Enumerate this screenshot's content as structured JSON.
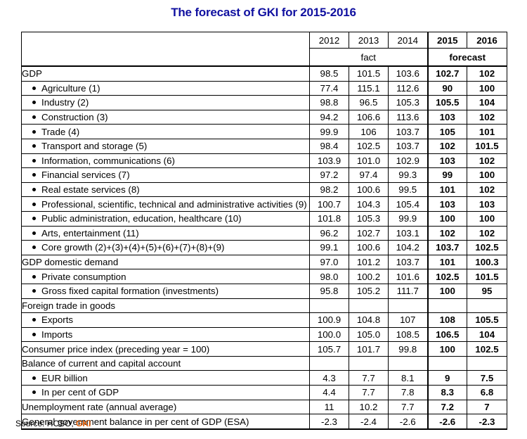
{
  "title": "The forecast of GKI for 2015-2016",
  "header": {
    "years": [
      "2012",
      "2013",
      "2014",
      "2015",
      "2016"
    ],
    "fact_label": "fact",
    "forecast_label": "forecast"
  },
  "rows": [
    {
      "label": "GDP",
      "bullet": false,
      "values": [
        "98.5",
        "101.5",
        "103.6",
        "102.7",
        "102"
      ]
    },
    {
      "label": "Agriculture (1)",
      "bullet": true,
      "values": [
        "77.4",
        "115.1",
        "112.6",
        "90",
        "100"
      ]
    },
    {
      "label": "Industry (2)",
      "bullet": true,
      "values": [
        "98.8",
        "96.5",
        "105.3",
        "105.5",
        "104"
      ]
    },
    {
      "label": "Construction (3)",
      "bullet": true,
      "values": [
        "94.2",
        "106.6",
        "113.6",
        "103",
        "102"
      ]
    },
    {
      "label": "Trade (4)",
      "bullet": true,
      "values": [
        "99.9",
        "106",
        "103.7",
        "105",
        "101"
      ]
    },
    {
      "label": "Transport and storage (5)",
      "bullet": true,
      "values": [
        "98.4",
        "102.5",
        "103.7",
        "102",
        "101.5"
      ]
    },
    {
      "label": "Information, communications (6)",
      "bullet": true,
      "values": [
        "103.9",
        "101.0",
        "102.9",
        "103",
        "102"
      ]
    },
    {
      "label": "Financial services (7)",
      "bullet": true,
      "values": [
        "97.2",
        "97.4",
        "99.3",
        "99",
        "100"
      ]
    },
    {
      "label": "Real estate services (8)",
      "bullet": true,
      "values": [
        "98.2",
        "100.6",
        "99.5",
        "101",
        "102"
      ]
    },
    {
      "label": "Professional, scientific, technical and administrative activities (9)",
      "bullet": true,
      "values": [
        "100.7",
        "104.3",
        "105.4",
        "103",
        "103"
      ]
    },
    {
      "label": "Public administration, education, healthcare (10)",
      "bullet": true,
      "values": [
        "101.8",
        "105.3",
        "99.9",
        "100",
        "100"
      ]
    },
    {
      "label": "Arts, entertainment (11)",
      "bullet": true,
      "values": [
        "96.2",
        "102.7",
        "103.1",
        "102",
        "102"
      ]
    },
    {
      "label": "Core growth (2)+(3)+(4)+(5)+(6)+(7)+(8)+(9)",
      "bullet": true,
      "values": [
        "99.1",
        "100.6",
        "104.2",
        "103.7",
        "102.5"
      ]
    },
    {
      "label": "GDP domestic demand",
      "bullet": false,
      "values": [
        "97.0",
        "101.2",
        "103.7",
        "101",
        "100.3"
      ]
    },
    {
      "label": "Private consumption",
      "bullet": true,
      "values": [
        "98.0",
        "100.2",
        "101.6",
        "102.5",
        "101.5"
      ]
    },
    {
      "label": "Gross fixed capital formation (investments)",
      "bullet": true,
      "values": [
        "95.8",
        "105.2",
        "111.7",
        "100",
        "95"
      ]
    },
    {
      "label": "Foreign trade in goods",
      "bullet": false,
      "values": [
        "",
        "",
        "",
        "",
        ""
      ]
    },
    {
      "label": "Exports",
      "bullet": true,
      "values": [
        "100.9",
        "104.8",
        "107",
        "108",
        "105.5"
      ]
    },
    {
      "label": "Imports",
      "bullet": true,
      "values": [
        "100.0",
        "105.0",
        "108.5",
        "106.5",
        "104"
      ]
    },
    {
      "label": "Consumer price index (preceding year = 100)",
      "bullet": false,
      "values": [
        "105.7",
        "101.7",
        "99.8",
        "100",
        "102.5"
      ]
    },
    {
      "label": "Balance of current and capital account",
      "bullet": false,
      "values": [
        "",
        "",
        "",
        "",
        ""
      ]
    },
    {
      "label": "EUR billion",
      "bullet": true,
      "values": [
        "4.3",
        "7.7",
        "8.1",
        "9",
        "7.5"
      ]
    },
    {
      "label": "In per cent of GDP",
      "bullet": true,
      "values": [
        "4.4",
        "7.7",
        "7.8",
        "8.3",
        "6.8"
      ]
    },
    {
      "label": "Unemployment rate (annual average)",
      "bullet": false,
      "values": [
        "11",
        "10.2",
        "7.7",
        "7.2",
        "7"
      ]
    },
    {
      "label": "General government balance in per cent of GDP (ESA)",
      "bullet": false,
      "values": [
        "-2.3",
        "-2.4",
        "-2.6",
        "-2.6",
        "-2.3"
      ]
    }
  ],
  "source": {
    "prefix": "Source: HCSO, ",
    "highlight": "GKI"
  }
}
